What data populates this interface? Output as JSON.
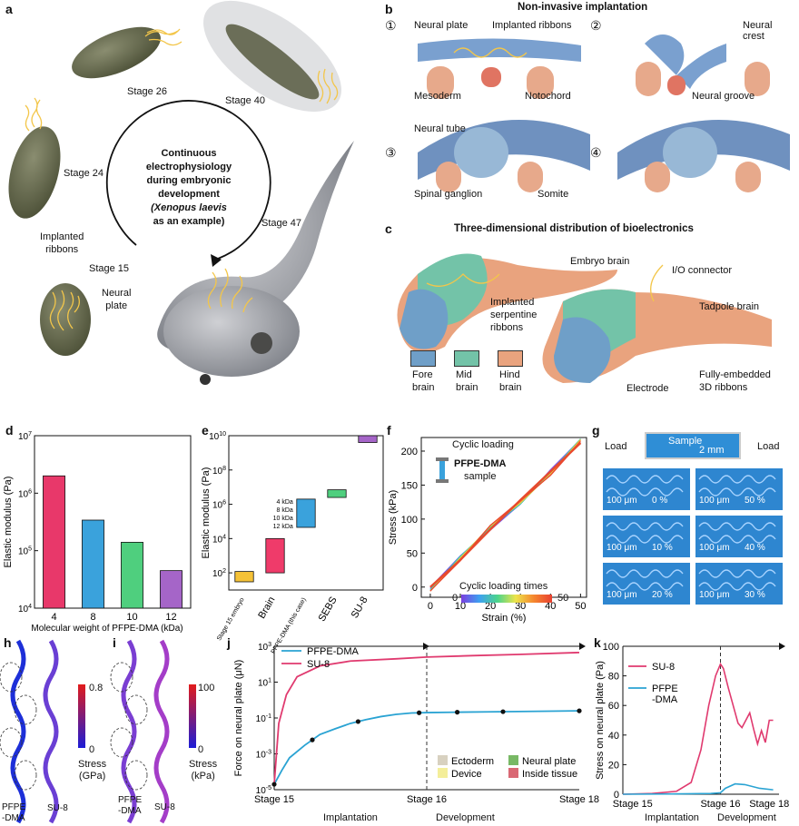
{
  "panels": {
    "a": {
      "label": "a",
      "stages": [
        "Stage 26",
        "Stage 40",
        "Stage 24",
        "Stage 15",
        "Stage 47"
      ],
      "center_lines": [
        "Continuous",
        "electrophysiology",
        "during embryonic",
        "development",
        "(Xenopus laevis",
        "as an example)"
      ],
      "implanted": [
        "Implanted",
        "ribbons"
      ],
      "neural_plate": [
        "Neural",
        "plate"
      ]
    },
    "b": {
      "label": "b",
      "title": "Non-invasive implantation",
      "steps": [
        "①",
        "②",
        "③",
        "④"
      ],
      "labels": {
        "neural_plate": "Neural plate",
        "implanted_ribbons": "Implanted ribbons",
        "neural_crest_1": "Neural",
        "neural_crest_2": "crest",
        "mesoderm": "Mesoderm",
        "notochord": "Notochord",
        "neural_groove": "Neural groove",
        "neural_tube": "Neural tube",
        "spinal_ganglion": "Spinal ganglion",
        "somite": "Somite"
      }
    },
    "c": {
      "label": "c",
      "title": "Three-dimensional distribution of bioelectronics",
      "labels": {
        "embryo_brain": "Embryo brain",
        "io_connector": "I/O connector",
        "implanted_serpentine": [
          "Implanted",
          "serpentine",
          "ribbons"
        ],
        "tadpole_brain": "Tadpole brain",
        "electrode": "Electrode",
        "fully_embedded": [
          "Fully-embedded",
          "3D ribbons"
        ]
      },
      "legend": [
        {
          "lines": [
            "Fore",
            "brain"
          ],
          "color": "#6f9fc8"
        },
        {
          "lines": [
            "Mid",
            "brain"
          ],
          "color": "#73c3a8"
        },
        {
          "lines": [
            "Hind",
            "brain"
          ],
          "color": "#e9a37e"
        }
      ]
    },
    "f": {
      "label": "f",
      "cyclic": "Cyclic loading",
      "sample": [
        "PFPE-DMA",
        "sample"
      ],
      "colorbar_title": "Cyclic loading times",
      "cb_min": "0",
      "cb_max": "50"
    },
    "g": {
      "label": "g",
      "load_left": "Load",
      "load_right": "Load",
      "sample": "Sample",
      "scale": "2 mm",
      "tiles": [
        {
          "scale": "100 μm",
          "strain": "0 %"
        },
        {
          "scale": "100 μm",
          "strain": "50 %"
        },
        {
          "scale": "100 μm",
          "strain": "10 %"
        },
        {
          "scale": "100 μm",
          "strain": "40 %"
        },
        {
          "scale": "100 μm",
          "strain": "20 %"
        },
        {
          "scale": "100 μm",
          "strain": "30 %"
        }
      ]
    },
    "h": {
      "label": "h",
      "cb_max": "0.8",
      "cb_min": "0",
      "cb_title": [
        "Stress",
        "(GPa)"
      ],
      "left": [
        "PFPE",
        "-DMA"
      ],
      "right": "SU-8"
    },
    "i": {
      "label": "i",
      "cb_max": "100",
      "cb_min": "0",
      "cb_title": [
        "Stress",
        "(kPa)"
      ],
      "left": [
        "PFPE",
        "-DMA"
      ],
      "right": "SU-8"
    },
    "j": {
      "legend_tissue": [
        {
          "name": "Ectoderm",
          "color": "#d8d1c0"
        },
        {
          "name": "Neural plate",
          "color": "#78b865"
        },
        {
          "name": "Device",
          "color": "#f4ee9a"
        },
        {
          "name": "Inside tissue",
          "color": "#d96874"
        }
      ],
      "phase_left": "Implantation",
      "phase_right": "Development"
    },
    "k": {
      "phase_left": "Implantation",
      "phase_right": "Development"
    }
  },
  "chart_data": [
    {
      "id": "d",
      "type": "bar",
      "label": "d",
      "categories": [
        "4",
        "8",
        "10",
        "12"
      ],
      "values": [
        2000000,
        340000,
        140000,
        45000
      ],
      "colors": [
        "#e8386a",
        "#3aa2dc",
        "#4fcf7e",
        "#a565c8"
      ],
      "xlabel": "Molecular weight of PFPE-DMA (kDa)",
      "ylabel": "Elastic modulus (Pa)",
      "ylim": [
        10000,
        10000000
      ],
      "yscale": "log",
      "yticks": [
        "10^4",
        "10^5",
        "10^6",
        "10^7"
      ]
    },
    {
      "id": "e",
      "type": "bar",
      "label": "e",
      "categories": [
        "Stage 15 embryo",
        "Brain",
        "PFPE-DMA (this case)",
        "SEBS",
        "SU-8"
      ],
      "ranges": [
        [
          30,
          120
        ],
        [
          100,
          10000
        ],
        [
          45000,
          2000000
        ],
        [
          2500000,
          7000000
        ],
        [
          4000000000,
          10000000000
        ]
      ],
      "colors": [
        "#f5c237",
        "#ef3b6a",
        "#3aa2dc",
        "#4fcf7e",
        "#a565c8"
      ],
      "ylabel": "Elastic modulus (Pa)",
      "ylim": [
        10,
        10000000000
      ],
      "yscale": "log",
      "yticks": [
        "10^2",
        "10^4",
        "10^6",
        "10^8",
        "10^10"
      ],
      "annotations": [
        "4 kDa",
        "8 kDa",
        "10 kDa",
        "12 kDa"
      ]
    },
    {
      "id": "f",
      "type": "line",
      "label": "f",
      "xlabel": "Strain (%)",
      "ylabel": "Stress (kPa)",
      "xlim": [
        -3,
        52
      ],
      "ylim": [
        -15,
        220
      ],
      "xticks": [
        0,
        10,
        20,
        30,
        40,
        50
      ],
      "yticks": [
        0,
        50,
        100,
        150,
        200
      ],
      "x": [
        0,
        10,
        20,
        30,
        40,
        50
      ],
      "y": [
        0,
        40,
        85,
        128,
        170,
        212
      ],
      "series_count": 50
    },
    {
      "id": "j",
      "type": "line",
      "label": "j",
      "ylabel": "Force on neural plate (μN)",
      "yscale": "log",
      "ylim": [
        1e-05,
        1000
      ],
      "yticks": [
        "10^-5",
        "10^-3",
        "10^-1",
        "10^1",
        "10^3"
      ],
      "xticks": [
        "Stage 15",
        "Stage 16",
        "Stage 18"
      ],
      "series": [
        {
          "name": "PFPE-DMA",
          "color": "#2aa3d3",
          "x": [
            0,
            0.05,
            0.1,
            0.2,
            0.3,
            0.4,
            0.5,
            0.6,
            0.7,
            0.8,
            0.9,
            1.0,
            1.2,
            1.4,
            1.6,
            1.8,
            2.0
          ],
          "y": [
            2e-05,
            0.00012,
            0.0006,
            0.003,
            0.012,
            0.025,
            0.05,
            0.08,
            0.12,
            0.16,
            0.19,
            0.2,
            0.21,
            0.22,
            0.23,
            0.24,
            0.25
          ]
        },
        {
          "name": "SU-8",
          "color": "#e03a6f",
          "x": [
            0,
            0.03,
            0.08,
            0.15,
            0.3,
            0.5,
            0.8,
            1.0,
            1.3,
            1.6,
            2.0
          ],
          "y": [
            2e-05,
            0.05,
            2,
            20,
            80,
            150,
            200,
            250,
            300,
            350,
            450
          ]
        }
      ],
      "markers_pfpe_x": [
        0,
        0.25,
        0.55,
        0.95,
        1.2,
        1.5,
        2.0
      ]
    },
    {
      "id": "k",
      "type": "line",
      "label": "k",
      "ylabel": "Stress on neural plate (Pa)",
      "ylim": [
        0,
        100
      ],
      "yticks": [
        0,
        20,
        40,
        60,
        80,
        100
      ],
      "xticks": [
        "Stage 15",
        "Stage 16",
        "Stage 18"
      ],
      "series": [
        {
          "name": "SU-8",
          "color": "#e03a6f",
          "x": [
            0,
            0.3,
            0.55,
            0.7,
            0.8,
            0.88,
            0.95,
            1.0,
            1.03,
            1.08,
            1.13,
            1.18,
            1.22,
            1.26,
            1.3,
            1.34,
            1.38,
            1.42,
            1.46,
            1.5,
            1.54
          ],
          "y": [
            0,
            0.5,
            2,
            8,
            30,
            60,
            80,
            88,
            85,
            72,
            60,
            48,
            45,
            50,
            55,
            44,
            34,
            43,
            35,
            50,
            50
          ]
        },
        {
          "name": "PFPE\n-DMA",
          "color": "#2aa3d3",
          "x": [
            0,
            0.5,
            0.9,
            1.0,
            1.05,
            1.15,
            1.25,
            1.4,
            1.54
          ],
          "y": [
            0,
            0.2,
            0.5,
            1,
            4,
            7,
            6.5,
            4,
            3
          ]
        }
      ]
    }
  ]
}
